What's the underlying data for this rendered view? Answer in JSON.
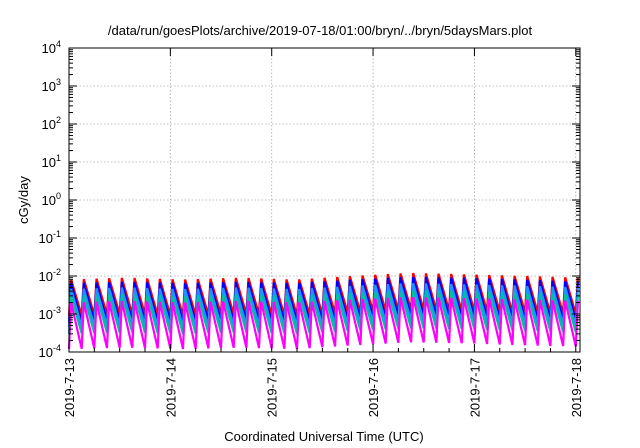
{
  "chart_data": {
    "type": "line",
    "title": "/data/run/goesPlots/archive/2019-07-18/01:00/bryn/../bryn/5daysMars.plot",
    "xlabel": "Coordinated Universal Time (UTC)",
    "ylabel": "cGy/day",
    "y_scale": "log",
    "ylim": [
      0.0001,
      10000
    ],
    "xlim": [
      "2019-07-13 00:00",
      "2019-07-18 01:00"
    ],
    "x_ticks": [
      "2019-7-13",
      "2019-7-14",
      "2019-7-15",
      "2019-7-16",
      "2019-7-17",
      "2019-7-18"
    ],
    "y_ticks": [
      {
        "base": "10",
        "exp": "-4"
      },
      {
        "base": "10",
        "exp": "-3"
      },
      {
        "base": "10",
        "exp": "-2"
      },
      {
        "base": "10",
        "exp": "-1"
      },
      {
        "base": "10",
        "exp": "0"
      },
      {
        "base": "10",
        "exp": "1"
      },
      {
        "base": "10",
        "exp": "2"
      },
      {
        "base": "10",
        "exp": "3"
      },
      {
        "base": "10",
        "exp": "4"
      }
    ],
    "grid": true,
    "legend": "none",
    "series": [
      {
        "color": "#ff0000",
        "peak_values": [
          0.008,
          0.009,
          0.008,
          0.009,
          0.008,
          0.01,
          0.012,
          0.011,
          0.01,
          0.009
        ],
        "trough_values": [
          0.0009,
          0.001,
          0.0009,
          0.001,
          0.0009,
          0.0011,
          0.0013,
          0.0012,
          0.0011,
          0.001
        ]
      },
      {
        "color": "#0000ff",
        "peak_values": [
          0.0065,
          0.007,
          0.0065,
          0.007,
          0.0065,
          0.008,
          0.0095,
          0.009,
          0.008,
          0.007
        ],
        "trough_values": [
          0.0006,
          0.00065,
          0.0006,
          0.00065,
          0.0006,
          0.0007,
          0.0009,
          0.0008,
          0.0007,
          0.0007
        ]
      },
      {
        "color": "#1e90ff",
        "peak_values": [
          0.0045,
          0.005,
          0.0045,
          0.005,
          0.0045,
          0.0055,
          0.0065,
          0.006,
          0.0055,
          0.005
        ],
        "trough_values": [
          0.00045,
          0.0005,
          0.00045,
          0.0005,
          0.00045,
          0.00055,
          0.00065,
          0.0006,
          0.00055,
          0.0005
        ]
      },
      {
        "color": "#00c0a0",
        "peak_values": [
          0.003,
          0.0033,
          0.003,
          0.0033,
          0.003,
          0.0036,
          0.0042,
          0.004,
          0.0036,
          0.0033
        ],
        "trough_values": [
          0.0003,
          0.00033,
          0.0003,
          0.00033,
          0.0003,
          0.00036,
          0.00042,
          0.0004,
          0.00036,
          0.00033
        ]
      },
      {
        "color": "#ff00ff",
        "peak_values": [
          0.002,
          0.0022,
          0.002,
          0.0022,
          0.002,
          0.0024,
          0.0028,
          0.0026,
          0.0024,
          0.0022
        ],
        "trough_values": [
          0.00012,
          0.00013,
          0.00012,
          0.00013,
          0.00012,
          0.00015,
          0.00018,
          0.00017,
          0.00015,
          0.00014
        ]
      }
    ]
  }
}
